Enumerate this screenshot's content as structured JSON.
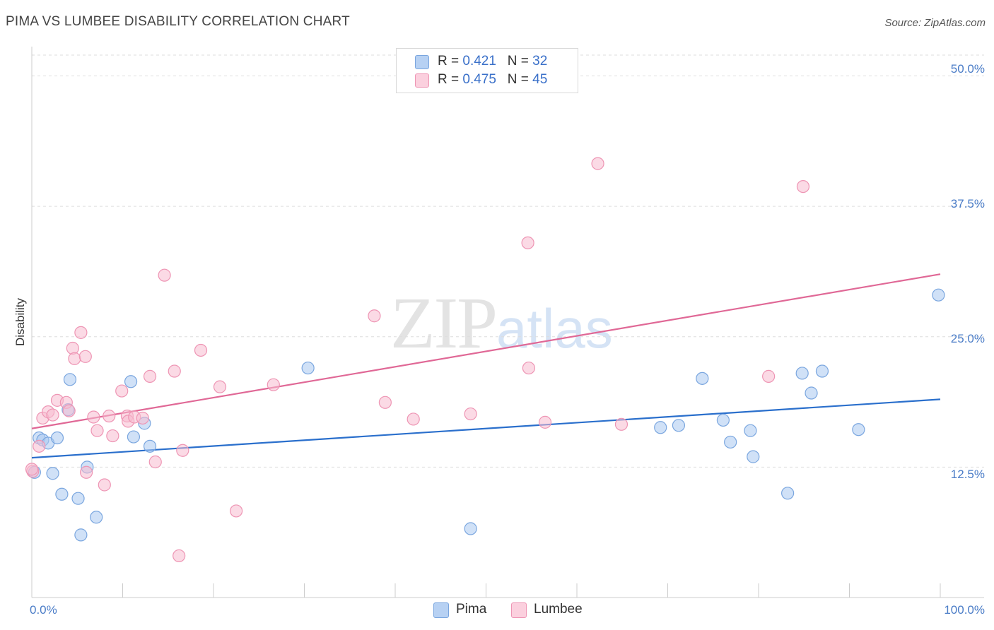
{
  "title": "PIMA VS LUMBEE DISABILITY CORRELATION CHART",
  "source": "Source: ZipAtlas.com",
  "watermark": {
    "zip": "ZIP",
    "atlas": "atlas"
  },
  "legend": {
    "rows": [
      {
        "r_label": "R =",
        "r_value": "0.421",
        "n_label": "N =",
        "n_value": "32"
      },
      {
        "r_label": "R =",
        "r_value": "0.475",
        "n_label": "N =",
        "n_value": "45"
      }
    ]
  },
  "colors": {
    "pima_fill": "#a9c8f0",
    "pima_stroke": "#7aa6df",
    "pima_line": "#2a6fcc",
    "lumbee_fill": "#f7bcd0",
    "lumbee_stroke": "#ee95b4",
    "lumbee_line": "#e06896",
    "grid": "#dddddd",
    "axis": "#cccccc",
    "tick_text": "#4a7cc7"
  },
  "chart_data": {
    "type": "scatter",
    "title": "PIMA VS LUMBEE DISABILITY CORRELATION CHART",
    "xlabel": "",
    "ylabel": "Disability",
    "xlim": [
      0,
      100
    ],
    "ylim": [
      0,
      52
    ],
    "x_tick_labels": [
      "0.0%",
      "100.0%"
    ],
    "y_ticks": [
      12.5,
      25.0,
      37.5,
      50.0
    ],
    "y_tick_labels": [
      "12.5%",
      "25.0%",
      "37.5%",
      "50.0%"
    ],
    "grid": true,
    "legend_position": "top-center",
    "series": [
      {
        "name": "Pima",
        "r": 0.421,
        "n": 32,
        "trend": [
          [
            0,
            13.4
          ],
          [
            100,
            19.0
          ]
        ],
        "points": [
          [
            0.3,
            12.0
          ],
          [
            0.8,
            15.3
          ],
          [
            1.2,
            15.1
          ],
          [
            1.8,
            14.8
          ],
          [
            2.3,
            11.9
          ],
          [
            2.8,
            15.3
          ],
          [
            3.3,
            9.9
          ],
          [
            4.0,
            18.0
          ],
          [
            4.2,
            20.9
          ],
          [
            5.1,
            9.5
          ],
          [
            5.4,
            6.0
          ],
          [
            6.1,
            12.5
          ],
          [
            7.1,
            7.7
          ],
          [
            10.9,
            20.7
          ],
          [
            11.2,
            15.4
          ],
          [
            12.4,
            16.7
          ],
          [
            13.0,
            14.5
          ],
          [
            30.4,
            22.0
          ],
          [
            48.3,
            6.6
          ],
          [
            69.2,
            16.3
          ],
          [
            71.2,
            16.5
          ],
          [
            73.8,
            21.0
          ],
          [
            76.1,
            17.0
          ],
          [
            76.9,
            14.9
          ],
          [
            79.1,
            16.0
          ],
          [
            79.4,
            13.5
          ],
          [
            83.2,
            10.0
          ],
          [
            84.8,
            21.5
          ],
          [
            85.8,
            19.6
          ],
          [
            87.0,
            21.7
          ],
          [
            91.0,
            16.1
          ],
          [
            99.8,
            29.0
          ]
        ]
      },
      {
        "name": "Lumbee",
        "r": 0.475,
        "n": 45,
        "trend": [
          [
            0,
            16.2
          ],
          [
            100,
            31.0
          ]
        ],
        "points": [
          [
            0.1,
            12.1
          ],
          [
            0.8,
            14.5
          ],
          [
            1.2,
            17.2
          ],
          [
            1.8,
            17.8
          ],
          [
            2.3,
            17.5
          ],
          [
            2.8,
            18.9
          ],
          [
            3.8,
            18.7
          ],
          [
            4.1,
            17.9
          ],
          [
            4.5,
            23.9
          ],
          [
            4.7,
            22.9
          ],
          [
            5.4,
            25.4
          ],
          [
            5.9,
            23.1
          ],
          [
            6.0,
            12.0
          ],
          [
            6.8,
            17.3
          ],
          [
            7.2,
            16.0
          ],
          [
            8.0,
            10.8
          ],
          [
            8.5,
            17.4
          ],
          [
            8.9,
            15.5
          ],
          [
            9.9,
            19.8
          ],
          [
            10.5,
            17.4
          ],
          [
            10.6,
            16.9
          ],
          [
            11.3,
            17.3
          ],
          [
            12.2,
            17.2
          ],
          [
            13.0,
            21.2
          ],
          [
            13.6,
            13.0
          ],
          [
            14.6,
            30.9
          ],
          [
            15.7,
            21.7
          ],
          [
            16.2,
            4.0
          ],
          [
            16.6,
            14.1
          ],
          [
            18.6,
            23.7
          ],
          [
            20.7,
            20.2
          ],
          [
            22.5,
            8.3
          ],
          [
            26.6,
            20.4
          ],
          [
            37.7,
            27.0
          ],
          [
            38.9,
            18.7
          ],
          [
            42.0,
            17.1
          ],
          [
            48.3,
            17.6
          ],
          [
            54.6,
            34.0
          ],
          [
            54.7,
            22.0
          ],
          [
            56.5,
            16.8
          ],
          [
            62.3,
            41.6
          ],
          [
            64.9,
            16.6
          ],
          [
            81.1,
            21.2
          ],
          [
            84.9,
            39.4
          ],
          [
            0.0,
            12.3
          ]
        ]
      }
    ]
  },
  "bottom_legend": {
    "pima": "Pima",
    "lumbee": "Lumbee"
  }
}
